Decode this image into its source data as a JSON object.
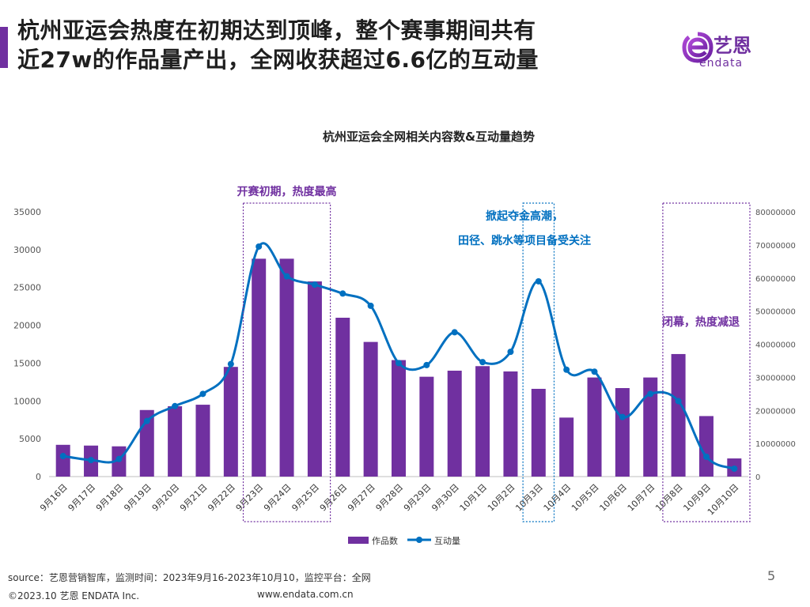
{
  "header": {
    "title_line1": "杭州亚运会热度在初期达到顶峰，整个赛事期间共有",
    "title_line2": "近27w的作品量产出，全网收获超过6.6亿的互动量"
  },
  "logo": {
    "text_cn": "艺恩",
    "text_en": "endata",
    "icon": "endata-logo-icon"
  },
  "colors": {
    "accent": "#7030A0",
    "bar": "#7030A0",
    "line": "#0070C0",
    "note_purple": "#7030A0",
    "note_blue": "#0070C0"
  },
  "chart_data": {
    "type": "bar+line",
    "title": "杭州亚运会全网相关内容数&互动量趋势",
    "categories": [
      "9月16日",
      "9月17日",
      "9月18日",
      "9月19日",
      "9月20日",
      "9月21日",
      "9月22日",
      "9月23日",
      "9月24日",
      "9月25日",
      "9月26日",
      "9月27日",
      "9月28日",
      "9月29日",
      "9月30日",
      "10月1日",
      "10月2日",
      "10月3日",
      "10月4日",
      "10月5日",
      "10月6日",
      "10月7日",
      "10月8日",
      "10月9日",
      "10月10日"
    ],
    "series": [
      {
        "name": "作品数",
        "type": "bar",
        "axis": "left",
        "values": [
          4200,
          4100,
          4000,
          8800,
          9300,
          9500,
          14500,
          28800,
          28800,
          25800,
          21000,
          17800,
          15400,
          13200,
          14000,
          14600,
          13900,
          11600,
          7800,
          13100,
          11700,
          13100,
          16200,
          8000,
          2400
        ]
      },
      {
        "name": "互动量",
        "type": "line",
        "axis": "right",
        "values": [
          6200000,
          5000000,
          5300000,
          16800000,
          21300000,
          25000000,
          34000000,
          69500000,
          60500000,
          58000000,
          55300000,
          51600000,
          34300000,
          33700000,
          43600000,
          34600000,
          37700000,
          59000000,
          32300000,
          31700000,
          18000000,
          25000000,
          22800000,
          6000000,
          2400000
        ]
      }
    ],
    "y_left": {
      "min": 0,
      "max": 35000,
      "ticks": [
        "0",
        "5000",
        "10000",
        "15000",
        "20000",
        "25000",
        "30000",
        "35000"
      ]
    },
    "y_right": {
      "min": 0,
      "max": 80000000,
      "ticks": [
        "0",
        "10000000",
        "20000000",
        "30000000",
        "40000000",
        "50000000",
        "60000000",
        "70000000",
        "80000000"
      ]
    },
    "grid": false,
    "legend_position": "bottom",
    "annotations": [
      {
        "lines": [
          "开赛初期，热度最高"
        ],
        "from": 7,
        "to": 9,
        "color": "purple"
      },
      {
        "lines": [
          "掀起夺金高潮，",
          "田径、跳水等项目备受关注"
        ],
        "from": 17,
        "to": 17,
        "color": "blue"
      },
      {
        "lines": [
          "闭幕，热度减退"
        ],
        "from": 22,
        "to": 24,
        "color": "purple"
      }
    ]
  },
  "footer": {
    "source": "source：艺恩营销智库，监测时间：2023年9月16-2023年10月10，监控平台：全网",
    "copyright": "©2023.10  艺恩 ENDATA Inc.",
    "url": "www.endata.com.cn",
    "page": "5"
  }
}
